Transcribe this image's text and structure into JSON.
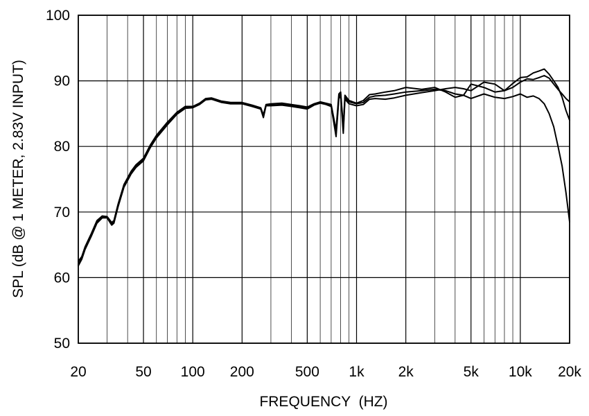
{
  "chart_data": {
    "type": "line",
    "xlabel": "FREQUENCY  (HZ)",
    "ylabel": "SPL (dB @ 1 METER, 2.83V INPUT)",
    "x_scale": "log",
    "xlim": [
      20,
      20000
    ],
    "ylim": [
      50,
      100
    ],
    "grid": true,
    "x_ticks": [
      {
        "value": 20,
        "label": "20"
      },
      {
        "value": 50,
        "label": "50"
      },
      {
        "value": 100,
        "label": "100"
      },
      {
        "value": 200,
        "label": "200"
      },
      {
        "value": 500,
        "label": "500"
      },
      {
        "value": 1000,
        "label": "1k"
      },
      {
        "value": 2000,
        "label": "2k"
      },
      {
        "value": 5000,
        "label": "5k"
      },
      {
        "value": 10000,
        "label": "10k"
      },
      {
        "value": 20000,
        "label": "20k"
      }
    ],
    "y_ticks": [
      {
        "value": 50,
        "label": "50"
      },
      {
        "value": 60,
        "label": "60"
      },
      {
        "value": 70,
        "label": "70"
      },
      {
        "value": 80,
        "label": "80"
      },
      {
        "value": 90,
        "label": "90"
      },
      {
        "value": 100,
        "label": "100"
      }
    ],
    "series": [
      {
        "points": [
          [
            20,
            62.0
          ],
          [
            21,
            63.0
          ],
          [
            22,
            64.5
          ],
          [
            24,
            66.5
          ],
          [
            26,
            68.5
          ],
          [
            28,
            69.3
          ],
          [
            30,
            69.2
          ],
          [
            32,
            68.2
          ],
          [
            33,
            68.5
          ],
          [
            35,
            71.0
          ],
          [
            38,
            74.0
          ],
          [
            40,
            75.0
          ],
          [
            42,
            76.0
          ],
          [
            45,
            77.0
          ],
          [
            50,
            78.0
          ],
          [
            55,
            80.0
          ],
          [
            60,
            81.5
          ],
          [
            70,
            83.5
          ],
          [
            80,
            85.0
          ],
          [
            90,
            86.0
          ],
          [
            100,
            86.0
          ],
          [
            110,
            86.5
          ],
          [
            120,
            87.2
          ],
          [
            130,
            87.3
          ],
          [
            150,
            86.8
          ],
          [
            170,
            86.6
          ],
          [
            200,
            86.6
          ],
          [
            230,
            86.2
          ],
          [
            260,
            85.8
          ],
          [
            270,
            84.6
          ],
          [
            280,
            86.3
          ],
          [
            300,
            86.3
          ],
          [
            350,
            86.4
          ],
          [
            400,
            86.2
          ],
          [
            450,
            86.0
          ],
          [
            500,
            85.8
          ],
          [
            550,
            86.4
          ],
          [
            600,
            86.7
          ],
          [
            650,
            86.5
          ],
          [
            700,
            86.2
          ],
          [
            750,
            82.0
          ],
          [
            780,
            87.5
          ],
          [
            800,
            88.0
          ],
          [
            830,
            82.5
          ],
          [
            850,
            87.5
          ],
          [
            900,
            86.8
          ],
          [
            1000,
            86.5
          ],
          [
            1100,
            86.7
          ],
          [
            1200,
            87.5
          ],
          [
            1300,
            87.7
          ],
          [
            1500,
            87.8
          ],
          [
            1700,
            88.0
          ],
          [
            2000,
            88.3
          ],
          [
            2500,
            88.5
          ],
          [
            3000,
            88.7
          ],
          [
            3500,
            88.5
          ],
          [
            4000,
            88.0
          ],
          [
            4500,
            87.8
          ],
          [
            5000,
            87.3
          ],
          [
            6000,
            88.0
          ],
          [
            7000,
            87.5
          ],
          [
            8000,
            87.3
          ],
          [
            9000,
            87.6
          ],
          [
            10000,
            88.0
          ],
          [
            11000,
            87.5
          ],
          [
            12000,
            87.7
          ],
          [
            13000,
            87.3
          ],
          [
            14000,
            86.5
          ],
          [
            15000,
            85.0
          ],
          [
            16000,
            83.0
          ],
          [
            17000,
            80.0
          ],
          [
            18000,
            77.0
          ],
          [
            19000,
            73.0
          ],
          [
            20000,
            68.5
          ]
        ]
      },
      {
        "points": [
          [
            20,
            62.5
          ],
          [
            21,
            63.2
          ],
          [
            22,
            64.7
          ],
          [
            24,
            66.7
          ],
          [
            26,
            68.7
          ],
          [
            28,
            69.4
          ],
          [
            30,
            69.3
          ],
          [
            32,
            68.4
          ],
          [
            33,
            68.7
          ],
          [
            35,
            71.2
          ],
          [
            38,
            74.2
          ],
          [
            40,
            75.2
          ],
          [
            42,
            76.2
          ],
          [
            45,
            77.2
          ],
          [
            50,
            78.2
          ],
          [
            55,
            80.2
          ],
          [
            60,
            81.7
          ],
          [
            70,
            83.7
          ],
          [
            80,
            85.2
          ],
          [
            90,
            86.1
          ],
          [
            100,
            86.1
          ],
          [
            110,
            86.6
          ],
          [
            120,
            87.3
          ],
          [
            130,
            87.4
          ],
          [
            150,
            86.9
          ],
          [
            170,
            86.7
          ],
          [
            200,
            86.7
          ],
          [
            230,
            86.3
          ],
          [
            260,
            85.9
          ],
          [
            270,
            84.8
          ],
          [
            280,
            86.4
          ],
          [
            300,
            86.5
          ],
          [
            350,
            86.6
          ],
          [
            400,
            86.4
          ],
          [
            450,
            86.2
          ],
          [
            500,
            86.0
          ],
          [
            550,
            86.5
          ],
          [
            600,
            86.8
          ],
          [
            650,
            86.6
          ],
          [
            700,
            86.4
          ],
          [
            750,
            82.5
          ],
          [
            780,
            88.0
          ],
          [
            800,
            88.3
          ],
          [
            830,
            83.0
          ],
          [
            850,
            87.8
          ],
          [
            900,
            87.0
          ],
          [
            1000,
            86.6
          ],
          [
            1100,
            87.0
          ],
          [
            1200,
            87.9
          ],
          [
            1300,
            88.0
          ],
          [
            1500,
            88.3
          ],
          [
            1700,
            88.5
          ],
          [
            2000,
            89.0
          ],
          [
            2500,
            88.7
          ],
          [
            3000,
            89.0
          ],
          [
            3500,
            88.3
          ],
          [
            4000,
            87.5
          ],
          [
            4500,
            87.8
          ],
          [
            5000,
            89.5
          ],
          [
            6000,
            89.0
          ],
          [
            7000,
            88.3
          ],
          [
            8000,
            88.5
          ],
          [
            9000,
            89.0
          ],
          [
            10000,
            89.8
          ],
          [
            11000,
            90.3
          ],
          [
            12000,
            90.2
          ],
          [
            13000,
            90.5
          ],
          [
            14000,
            90.8
          ],
          [
            15000,
            90.4
          ],
          [
            16000,
            89.5
          ],
          [
            17000,
            88.7
          ],
          [
            18000,
            88.0
          ],
          [
            19000,
            87.3
          ],
          [
            20000,
            86.8
          ]
        ]
      },
      {
        "points": [
          [
            20,
            61.8
          ],
          [
            21,
            62.8
          ],
          [
            22,
            64.3
          ],
          [
            24,
            66.3
          ],
          [
            26,
            68.3
          ],
          [
            28,
            69.1
          ],
          [
            30,
            69.1
          ],
          [
            32,
            68.0
          ],
          [
            33,
            68.3
          ],
          [
            35,
            70.8
          ],
          [
            38,
            73.8
          ],
          [
            40,
            74.8
          ],
          [
            42,
            75.8
          ],
          [
            45,
            76.8
          ],
          [
            50,
            77.8
          ],
          [
            55,
            79.8
          ],
          [
            60,
            81.3
          ],
          [
            70,
            83.3
          ],
          [
            80,
            84.9
          ],
          [
            90,
            85.8
          ],
          [
            100,
            85.9
          ],
          [
            110,
            86.4
          ],
          [
            120,
            87.1
          ],
          [
            130,
            87.2
          ],
          [
            150,
            86.7
          ],
          [
            170,
            86.5
          ],
          [
            200,
            86.5
          ],
          [
            230,
            86.1
          ],
          [
            260,
            85.7
          ],
          [
            270,
            84.4
          ],
          [
            280,
            86.2
          ],
          [
            300,
            86.2
          ],
          [
            350,
            86.3
          ],
          [
            400,
            86.1
          ],
          [
            450,
            85.9
          ],
          [
            500,
            85.7
          ],
          [
            550,
            86.3
          ],
          [
            600,
            86.6
          ],
          [
            650,
            86.4
          ],
          [
            700,
            86.1
          ],
          [
            750,
            81.5
          ],
          [
            780,
            87.3
          ],
          [
            800,
            87.7
          ],
          [
            830,
            82.0
          ],
          [
            850,
            87.2
          ],
          [
            900,
            86.5
          ],
          [
            1000,
            86.2
          ],
          [
            1100,
            86.4
          ],
          [
            1200,
            87.2
          ],
          [
            1300,
            87.3
          ],
          [
            1500,
            87.2
          ],
          [
            1700,
            87.4
          ],
          [
            2000,
            87.8
          ],
          [
            2500,
            88.2
          ],
          [
            3000,
            88.5
          ],
          [
            3500,
            88.8
          ],
          [
            4000,
            89.0
          ],
          [
            4500,
            88.8
          ],
          [
            5000,
            88.5
          ],
          [
            6000,
            89.8
          ],
          [
            7000,
            89.5
          ],
          [
            8000,
            88.5
          ],
          [
            9000,
            89.6
          ],
          [
            10000,
            90.5
          ],
          [
            11000,
            90.6
          ],
          [
            12000,
            91.2
          ],
          [
            13000,
            91.5
          ],
          [
            14000,
            91.8
          ],
          [
            15000,
            91.0
          ],
          [
            16000,
            90.0
          ],
          [
            17000,
            89.0
          ],
          [
            18000,
            87.5
          ],
          [
            19000,
            85.5
          ],
          [
            20000,
            84.0
          ]
        ]
      }
    ]
  }
}
